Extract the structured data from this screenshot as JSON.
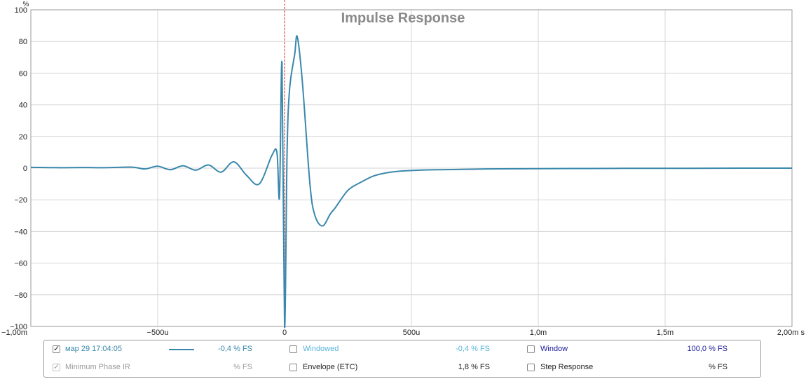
{
  "chart_data": {
    "type": "line",
    "title": "Impulse Response",
    "ylabel": "%",
    "x_unit": "s",
    "xlim": [
      -0.001,
      0.002
    ],
    "ylim": [
      -100,
      100
    ],
    "grid": true,
    "x_ticks": [
      -0.001,
      -0.0005,
      0,
      0.0005,
      0.001,
      0.0015,
      0.002
    ],
    "x_tick_labels": [
      "-1,00m",
      "-500u",
      "0",
      "500u",
      "1,0m",
      "1,5m",
      "2,00m s"
    ],
    "y_ticks": [
      100,
      80,
      60,
      40,
      20,
      0,
      -20,
      -40,
      -60,
      -80,
      -100
    ],
    "y_tick_labels": [
      "100",
      "80",
      "60",
      "40",
      "20",
      "0",
      "-20",
      "-40",
      "-60",
      "-80",
      "-100"
    ],
    "marker_x": 0,
    "marker_color": "#e03030",
    "series": [
      {
        "name": "мар 29 17:04:05",
        "color": "#3a88ad",
        "x": [
          -0.001,
          -0.0009,
          -0.0008,
          -0.0007,
          -0.0006,
          -0.00055,
          -0.0005,
          -0.00045,
          -0.0004,
          -0.00035,
          -0.0003,
          -0.00025,
          -0.0002,
          -0.00015,
          -0.0001,
          -5e-05,
          -3e-05,
          -2e-05,
          -1e-05,
          0,
          1e-05,
          2e-05,
          4e-05,
          5e-05,
          7e-05,
          0.0001,
          0.00012,
          0.00015,
          0.00018,
          0.0002,
          0.00025,
          0.0003,
          0.00035,
          0.0004,
          0.00045,
          0.0005,
          0.0006,
          0.0007,
          0.0008,
          0.0009,
          0.001,
          0.0012,
          0.0014,
          0.0016,
          0.0018,
          0.002
        ],
        "y": [
          0.5,
          0.3,
          0.4,
          0.3,
          0.6,
          -0.5,
          1.2,
          -1.0,
          1.5,
          -1.3,
          2.0,
          -2.5,
          4.0,
          -4.5,
          -10.0,
          8.0,
          10.0,
          -18.0,
          66.0,
          -100.0,
          10.0,
          50.0,
          72.0,
          83.0,
          55.0,
          -10.0,
          -30.0,
          -36.5,
          -29.0,
          -25.0,
          -14.0,
          -9.0,
          -5.0,
          -3.0,
          -2.0,
          -1.5,
          -1.0,
          -0.8,
          -0.5,
          -0.4,
          -0.3,
          -0.2,
          -0.1,
          -0.1,
          0.0,
          0.0
        ]
      }
    ]
  },
  "legend": {
    "row1": {
      "measurement_label": "мар 29 17:04:05",
      "measurement_value": "-0,4 % FS",
      "measurement_checked": true,
      "windowed_label": "Windowed",
      "windowed_value": "-0,4 % FS",
      "windowed_checked": false,
      "window_label": "Window",
      "window_value": "100,0 % FS",
      "window_checked": false
    },
    "row2": {
      "minphase_label": "Minimum Phase IR",
      "minphase_value": "% FS",
      "minphase_checked": true,
      "envelope_label": "Envelope (ETC)",
      "envelope_value": "1,8 % FS",
      "envelope_checked": false,
      "step_label": "Step Response",
      "step_value": "% FS",
      "step_checked": false
    },
    "colors": {
      "measurement": "#3a88ad",
      "windowed": "#5ab4dc",
      "window": "#1a1a9a",
      "dim": "#9a9a9a",
      "text": "#222222"
    }
  }
}
